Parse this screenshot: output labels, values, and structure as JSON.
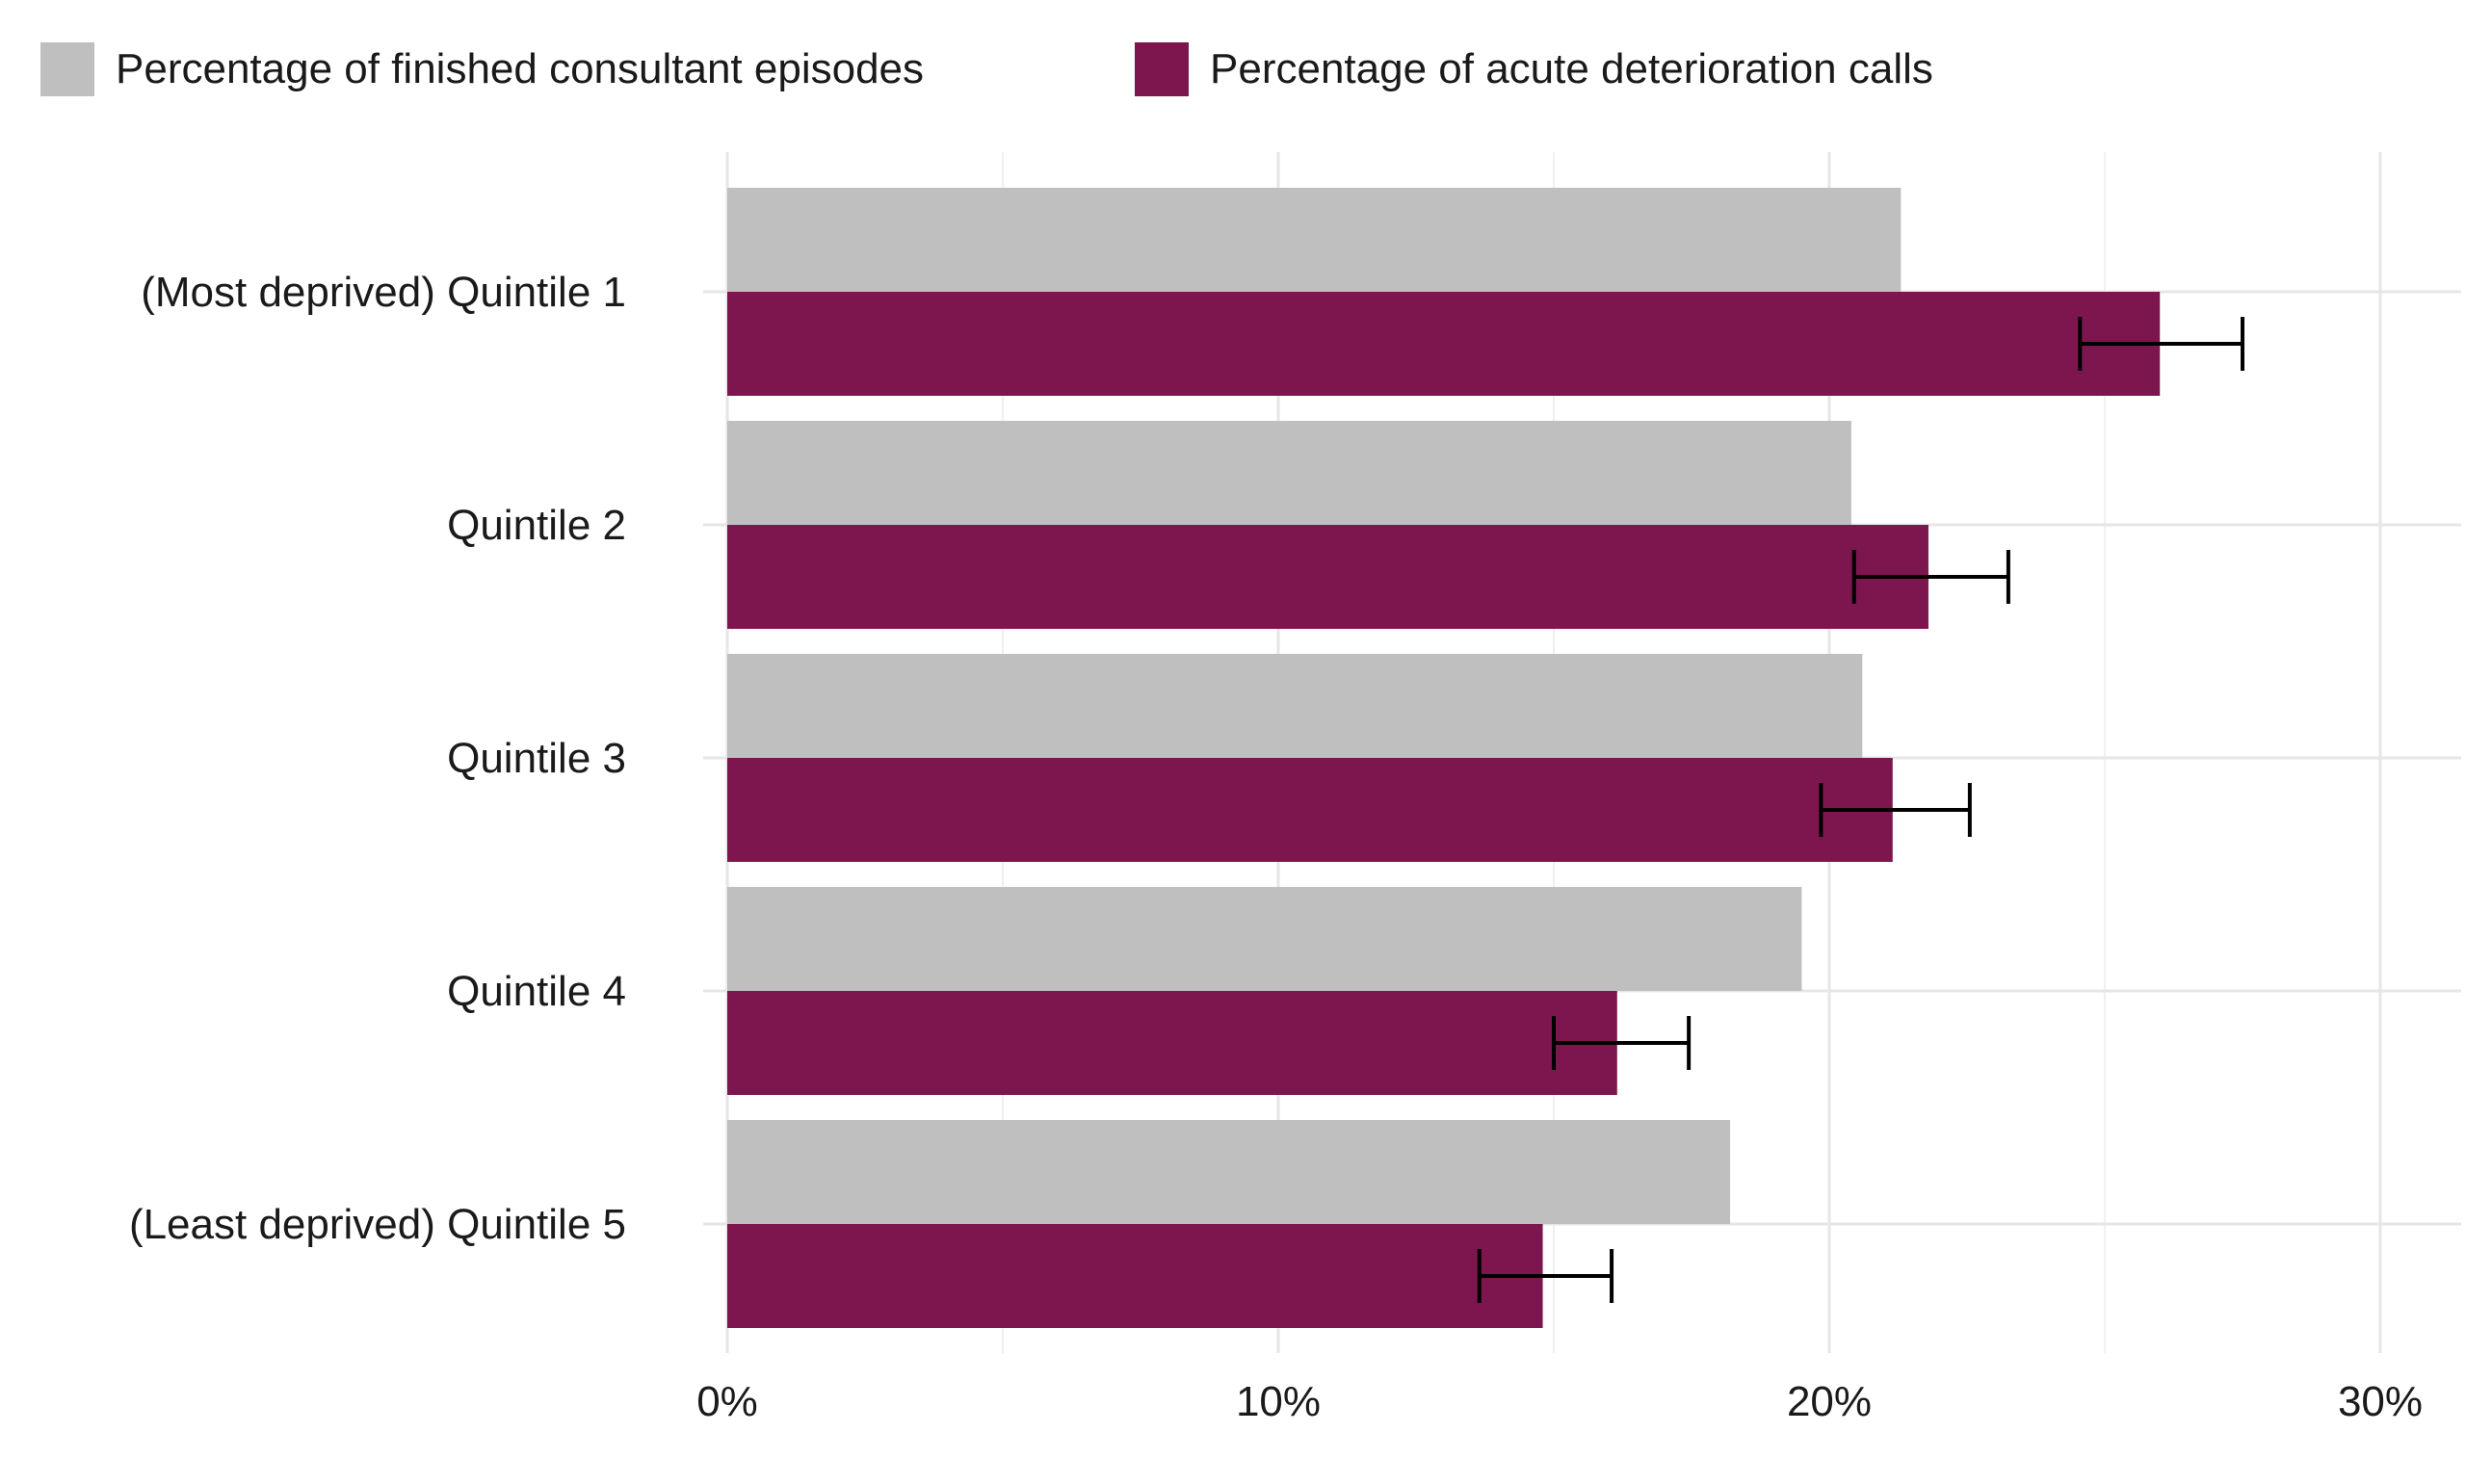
{
  "chart_data": {
    "type": "bar",
    "orientation": "horizontal",
    "title": "",
    "xlabel": "",
    "ylabel": "",
    "categories": [
      "(Most deprived) Quintile 1",
      "Quintile 2",
      "Quintile 3",
      "Quintile 4",
      "(Least deprived) Quintile 5"
    ],
    "series": [
      {
        "name": "Percentage of finished consultant episodes",
        "color": "#bfbfbf",
        "values": [
          21.3,
          20.4,
          20.6,
          19.5,
          18.2
        ]
      },
      {
        "name": "Percentage of acute deterioration calls",
        "color": "#7d164e",
        "values": [
          26.0,
          21.8,
          21.15,
          16.15,
          14.8
        ],
        "error_low": [
          24.55,
          20.45,
          19.85,
          15.0,
          13.65
        ],
        "error_high": [
          27.5,
          23.25,
          22.55,
          17.45,
          16.05
        ]
      }
    ],
    "xlim": [
      0,
      30
    ],
    "xticks": [
      0,
      10,
      20,
      30
    ],
    "xtick_labels": [
      "0%",
      "10%",
      "20%",
      "30%"
    ],
    "grid": true,
    "legend_position": "top-left"
  }
}
